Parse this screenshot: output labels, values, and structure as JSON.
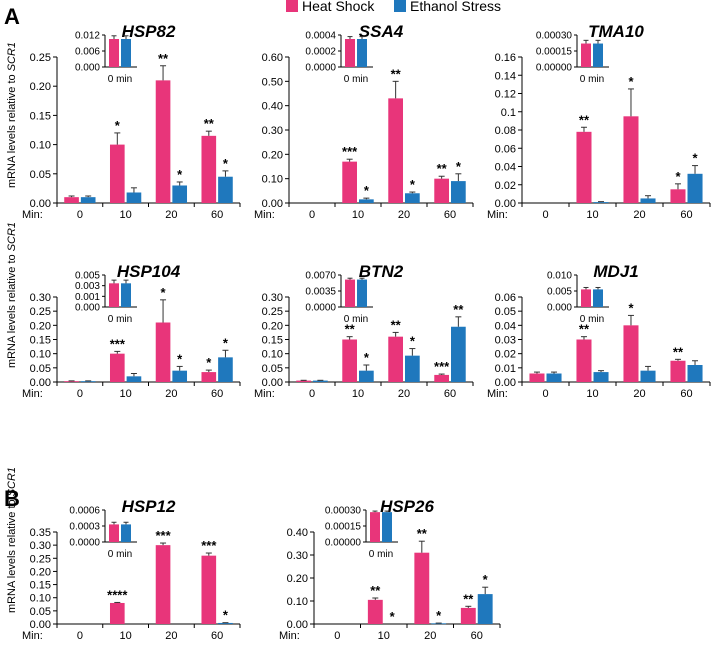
{
  "legend": [
    {
      "label": "Heat Shock",
      "color": "#e8357a"
    },
    {
      "label": "Ethanol Stress",
      "color": "#1f78bd"
    }
  ],
  "panel_letters": [
    "A",
    "B"
  ],
  "ylabel_prefix": "mRNA levels relative to ",
  "ylabel_gene": "SCR1",
  "min_label": "Min:",
  "inset_label": "0 min",
  "chart_data": [
    {
      "type": "bar",
      "title": "HSP82",
      "categories": [
        "0",
        "10",
        "20",
        "60"
      ],
      "series": [
        {
          "name": "Heat Shock",
          "values": [
            0.01,
            0.1,
            0.21,
            0.115
          ],
          "errors": [
            0.002,
            0.02,
            0.025,
            0.008
          ],
          "sig": [
            "",
            "*",
            "**",
            "**"
          ]
        },
        {
          "name": "Ethanol Stress",
          "values": [
            0.01,
            0.018,
            0.03,
            0.045
          ],
          "errors": [
            0.002,
            0.008,
            0.006,
            0.01
          ],
          "sig": [
            "",
            "",
            "*",
            "*"
          ]
        }
      ],
      "yticks": [
        "0.00",
        "0.05",
        "0.10",
        "0.15",
        "0.20",
        "0.25"
      ],
      "ylim": [
        0,
        0.25
      ],
      "inset": {
        "yticks": [
          "0.000",
          "0.006",
          "0.012"
        ],
        "ylim": [
          0,
          0.012
        ],
        "values": [
          0.0105,
          0.0105
        ],
        "errors": [
          0.0012,
          0.0012
        ]
      }
    },
    {
      "type": "bar",
      "title": "SSA4",
      "categories": [
        "0",
        "10",
        "20",
        "60"
      ],
      "series": [
        {
          "name": "Heat Shock",
          "values": [
            0.0,
            0.17,
            0.43,
            0.1
          ],
          "errors": [
            0,
            0.01,
            0.07,
            0.01
          ],
          "sig": [
            "",
            "***",
            "**",
            "**"
          ]
        },
        {
          "name": "Ethanol Stress",
          "values": [
            0.0,
            0.015,
            0.04,
            0.09
          ],
          "errors": [
            0,
            0.005,
            0.005,
            0.03
          ],
          "sig": [
            "",
            "*",
            "*",
            "*"
          ]
        }
      ],
      "yticks": [
        "0.00",
        "0.10",
        "0.20",
        "0.30",
        "0.40",
        "0.50",
        "0.60"
      ],
      "ylim": [
        0,
        0.6
      ],
      "inset": {
        "yticks": [
          "0.0000",
          "0.0002",
          "0.0004"
        ],
        "ylim": [
          0,
          0.0004
        ],
        "values": [
          0.00035,
          0.00035
        ],
        "errors": [
          3e-05,
          3e-05
        ]
      }
    },
    {
      "type": "bar",
      "title": "TMA10",
      "categories": [
        "0",
        "10",
        "20",
        "60"
      ],
      "series": [
        {
          "name": "Heat Shock",
          "values": [
            0.0,
            0.078,
            0.095,
            0.015
          ],
          "errors": [
            0,
            0.005,
            0.03,
            0.006
          ],
          "sig": [
            "",
            "**",
            "*",
            "*"
          ]
        },
        {
          "name": "Ethanol Stress",
          "values": [
            0.0,
            0.001,
            0.005,
            0.032
          ],
          "errors": [
            0,
            0.0005,
            0.003,
            0.009
          ],
          "sig": [
            "",
            "",
            "",
            "*"
          ]
        }
      ],
      "yticks": [
        "0.00",
        "0.02",
        "0.04",
        "0.06",
        "0.08",
        "0.1",
        "0.12",
        "0.14",
        "0.16"
      ],
      "ylim": [
        0,
        0.16
      ],
      "inset": {
        "yticks": [
          "0.00000",
          "0.00015",
          "0.00030"
        ],
        "ylim": [
          0,
          0.0003
        ],
        "values": [
          0.00022,
          0.00022
        ],
        "errors": [
          3e-05,
          3e-05
        ]
      }
    },
    {
      "type": "bar",
      "title": "HSP104",
      "categories": [
        "0",
        "10",
        "20",
        "60"
      ],
      "series": [
        {
          "name": "Heat Shock",
          "values": [
            0.003,
            0.1,
            0.21,
            0.035
          ],
          "errors": [
            0.001,
            0.008,
            0.08,
            0.007
          ],
          "sig": [
            "",
            "***",
            "*",
            "*"
          ]
        },
        {
          "name": "Ethanol Stress",
          "values": [
            0.003,
            0.02,
            0.04,
            0.087
          ],
          "errors": [
            0.001,
            0.01,
            0.015,
            0.025
          ],
          "sig": [
            "",
            "",
            "*",
            "*"
          ]
        }
      ],
      "yticks": [
        "0.00",
        "0.05",
        "0.10",
        "0.15",
        "0.20",
        "0.25",
        "0.30"
      ],
      "ylim": [
        0,
        0.3
      ],
      "inset": {
        "yticks": [
          "0.000",
          "0.001",
          "0.003",
          "0.005"
        ],
        "ylim": [
          0,
          0.005
        ],
        "values": [
          0.0037,
          0.0037
        ],
        "errors": [
          0.0005,
          0.0005
        ]
      }
    },
    {
      "type": "bar",
      "title": "BTN2",
      "categories": [
        "0",
        "10",
        "20",
        "60"
      ],
      "series": [
        {
          "name": "Heat Shock",
          "values": [
            0.005,
            0.15,
            0.16,
            0.025
          ],
          "errors": [
            0.001,
            0.01,
            0.015,
            0.003
          ],
          "sig": [
            "",
            "**",
            "**",
            "***"
          ]
        },
        {
          "name": "Ethanol Stress",
          "values": [
            0.005,
            0.04,
            0.093,
            0.195
          ],
          "errors": [
            0.001,
            0.02,
            0.025,
            0.035
          ],
          "sig": [
            "",
            "*",
            "*",
            "**"
          ]
        }
      ],
      "yticks": [
        "0.00",
        "0.05",
        "0.10",
        "0.15",
        "0.20",
        "0.25",
        "0.30"
      ],
      "ylim": [
        0,
        0.3
      ],
      "inset": {
        "yticks": [
          "0.0000",
          "0.0035",
          "0.0070"
        ],
        "ylim": [
          0,
          0.007
        ],
        "values": [
          0.006,
          0.006
        ],
        "errors": [
          0.0003,
          0.0003
        ]
      }
    },
    {
      "type": "bar",
      "title": "MDJ1",
      "categories": [
        "0",
        "10",
        "20",
        "60"
      ],
      "series": [
        {
          "name": "Heat Shock",
          "values": [
            0.006,
            0.03,
            0.04,
            0.015
          ],
          "errors": [
            0.001,
            0.002,
            0.007,
            0.001
          ],
          "sig": [
            "",
            "**",
            "*",
            "**"
          ]
        },
        {
          "name": "Ethanol Stress",
          "values": [
            0.006,
            0.007,
            0.008,
            0.012
          ],
          "errors": [
            0.001,
            0.001,
            0.003,
            0.003
          ],
          "sig": [
            "",
            "",
            "",
            ""
          ]
        }
      ],
      "yticks": [
        "0.00",
        "0.01",
        "0.02",
        "0.03",
        "0.04",
        "0.05",
        "0.06"
      ],
      "ylim": [
        0,
        0.06
      ],
      "inset": {
        "yticks": [
          "0.000",
          "0.005",
          "0.010"
        ],
        "ylim": [
          0,
          0.01
        ],
        "values": [
          0.0055,
          0.0055
        ],
        "errors": [
          0.0006,
          0.0006
        ]
      }
    },
    {
      "type": "bar",
      "title": "HSP12",
      "categories": [
        "0",
        "10",
        "20",
        "60"
      ],
      "series": [
        {
          "name": "Heat Shock",
          "values": [
            0.0,
            0.08,
            0.3,
            0.26
          ],
          "errors": [
            0,
            0.002,
            0.008,
            0.01
          ],
          "sig": [
            "",
            "****",
            "***",
            "***"
          ]
        },
        {
          "name": "Ethanol Stress",
          "values": [
            0.0,
            0.0,
            0.0,
            0.004
          ],
          "errors": [
            0,
            0,
            0,
            0.001
          ],
          "sig": [
            "",
            "",
            "",
            "*"
          ]
        }
      ],
      "yticks": [
        "0.00",
        "0.05",
        "0.10",
        "0.15",
        "0.20",
        "0.25",
        "0.30",
        "0.35"
      ],
      "ylim": [
        0,
        0.35
      ],
      "inset": {
        "yticks": [
          "0.0000",
          "0.0003",
          "0.0006"
        ],
        "ylim": [
          0,
          0.0006
        ],
        "values": [
          0.00033,
          0.00033
        ],
        "errors": [
          4e-05,
          4e-05
        ]
      }
    },
    {
      "type": "bar",
      "title": "HSP26",
      "categories": [
        "0",
        "10",
        "20",
        "60"
      ],
      "series": [
        {
          "name": "Heat Shock",
          "values": [
            0.0,
            0.105,
            0.31,
            0.07
          ],
          "errors": [
            0,
            0.008,
            0.05,
            0.007
          ],
          "sig": [
            "",
            "**",
            "**",
            "**"
          ]
        },
        {
          "name": "Ethanol Stress",
          "values": [
            0.0,
            0.0,
            0.003,
            0.13
          ],
          "errors": [
            0,
            0,
            0.001,
            0.03
          ],
          "sig": [
            "",
            "*",
            "*",
            "*"
          ]
        }
      ],
      "yticks": [
        "0.00",
        "0.10",
        "0.20",
        "0.30",
        "0.40"
      ],
      "ylim": [
        0,
        0.4
      ],
      "inset": {
        "yticks": [
          "0.00000",
          "0.00015",
          "0.00030"
        ],
        "ylim": [
          0,
          0.0003
        ],
        "values": [
          0.00028,
          0.00028
        ],
        "errors": [
          1e-05,
          1e-05
        ]
      }
    }
  ]
}
